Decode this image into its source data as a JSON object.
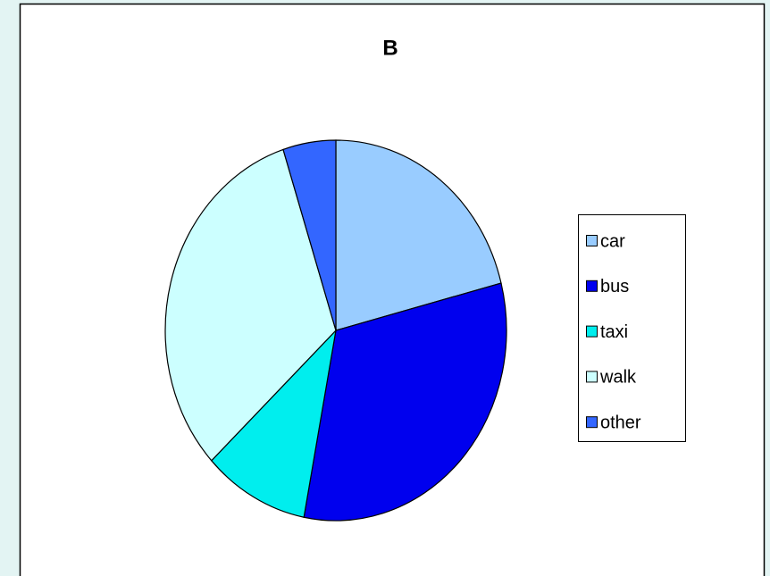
{
  "chart_data": {
    "type": "pie",
    "title": "B",
    "categories": [
      "car",
      "bus",
      "taxi",
      "walk",
      "other"
    ],
    "values": [
      21,
      32,
      10,
      32,
      5
    ],
    "colors": [
      "#99ccff",
      "#0000ee",
      "#00eeee",
      "#ccffff",
      "#3366ff"
    ],
    "legend": "right"
  }
}
